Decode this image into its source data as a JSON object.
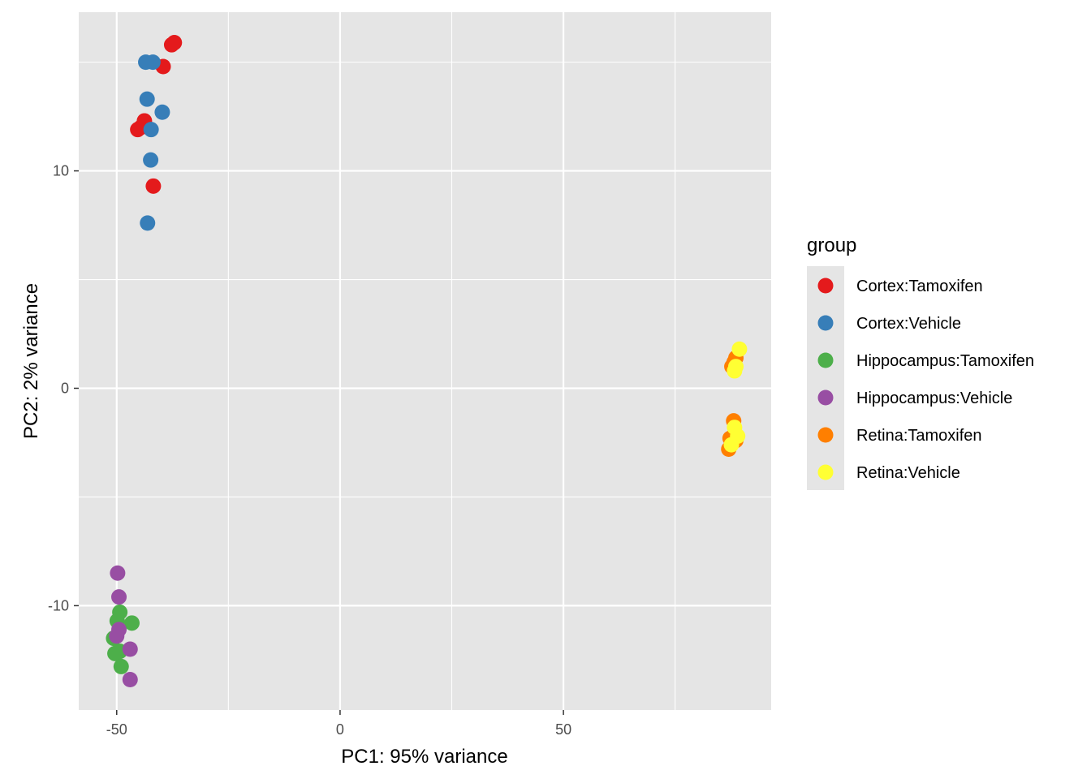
{
  "chart_data": {
    "type": "scatter",
    "xlabel": "PC1: 95% variance",
    "ylabel": "PC2: 2% variance",
    "xlim": [
      -58.5,
      96.5
    ],
    "ylim": [
      -14.8,
      17.3
    ],
    "x_ticks": [
      -50,
      0,
      50
    ],
    "x_tick_labels": [
      "-50",
      "0",
      "50"
    ],
    "y_ticks": [
      -10,
      0,
      10
    ],
    "y_tick_labels": [
      "-10",
      "0",
      "10"
    ],
    "x_minor": [
      -25,
      25,
      75
    ],
    "y_minor": [
      -5,
      5,
      15
    ],
    "background": "#e5e5e5",
    "grid": true,
    "legend": {
      "title": "group",
      "position": "right"
    },
    "series": [
      {
        "name": "Cortex:Tamoxifen",
        "color": "#e41a1c",
        "points": [
          [
            -37.1,
            15.9
          ],
          [
            -37.7,
            15.8
          ],
          [
            -39.6,
            14.8
          ],
          [
            -44.6,
            12.0
          ],
          [
            -45.3,
            11.9
          ],
          [
            -43.8,
            12.3
          ],
          [
            -41.8,
            9.3
          ]
        ]
      },
      {
        "name": "Cortex:Vehicle",
        "color": "#377eb8",
        "points": [
          [
            -41.9,
            15.0
          ],
          [
            -43.5,
            15.0
          ],
          [
            -43.2,
            13.3
          ],
          [
            -39.8,
            12.7
          ],
          [
            -42.3,
            11.9
          ],
          [
            -42.4,
            10.5
          ],
          [
            -43.1,
            7.6
          ]
        ]
      },
      {
        "name": "Hippocampus:Tamoxifen",
        "color": "#4daf4a",
        "points": [
          [
            -49.3,
            -10.3
          ],
          [
            -49.9,
            -10.7
          ],
          [
            -46.6,
            -10.8
          ],
          [
            -50.7,
            -11.5
          ],
          [
            -50.4,
            -12.2
          ],
          [
            -49.3,
            -12.1
          ],
          [
            -49.0,
            -12.8
          ]
        ]
      },
      {
        "name": "Hippocampus:Vehicle",
        "color": "#984ea3",
        "points": [
          [
            -49.8,
            -8.5
          ],
          [
            -49.5,
            -9.6
          ],
          [
            -49.5,
            -11.1
          ],
          [
            -50.0,
            -11.4
          ],
          [
            -47.0,
            -12.0
          ],
          [
            -47.0,
            -13.4
          ]
        ]
      },
      {
        "name": "Retina:Tamoxifen",
        "color": "#ff7f00",
        "points": [
          [
            88.2,
            1.2
          ],
          [
            88.6,
            1.4
          ],
          [
            87.7,
            1.0
          ],
          [
            88.1,
            -1.5
          ],
          [
            87.3,
            -2.3
          ],
          [
            88.6,
            -2.4
          ],
          [
            87.0,
            -2.8
          ]
        ]
      },
      {
        "name": "Retina:Vehicle",
        "color": "#ffff33",
        "points": [
          [
            89.4,
            1.8
          ],
          [
            88.6,
            1.0
          ],
          [
            88.3,
            0.8
          ],
          [
            88.3,
            -1.8
          ],
          [
            89.0,
            -2.2
          ],
          [
            87.6,
            -2.6
          ]
        ]
      }
    ]
  }
}
